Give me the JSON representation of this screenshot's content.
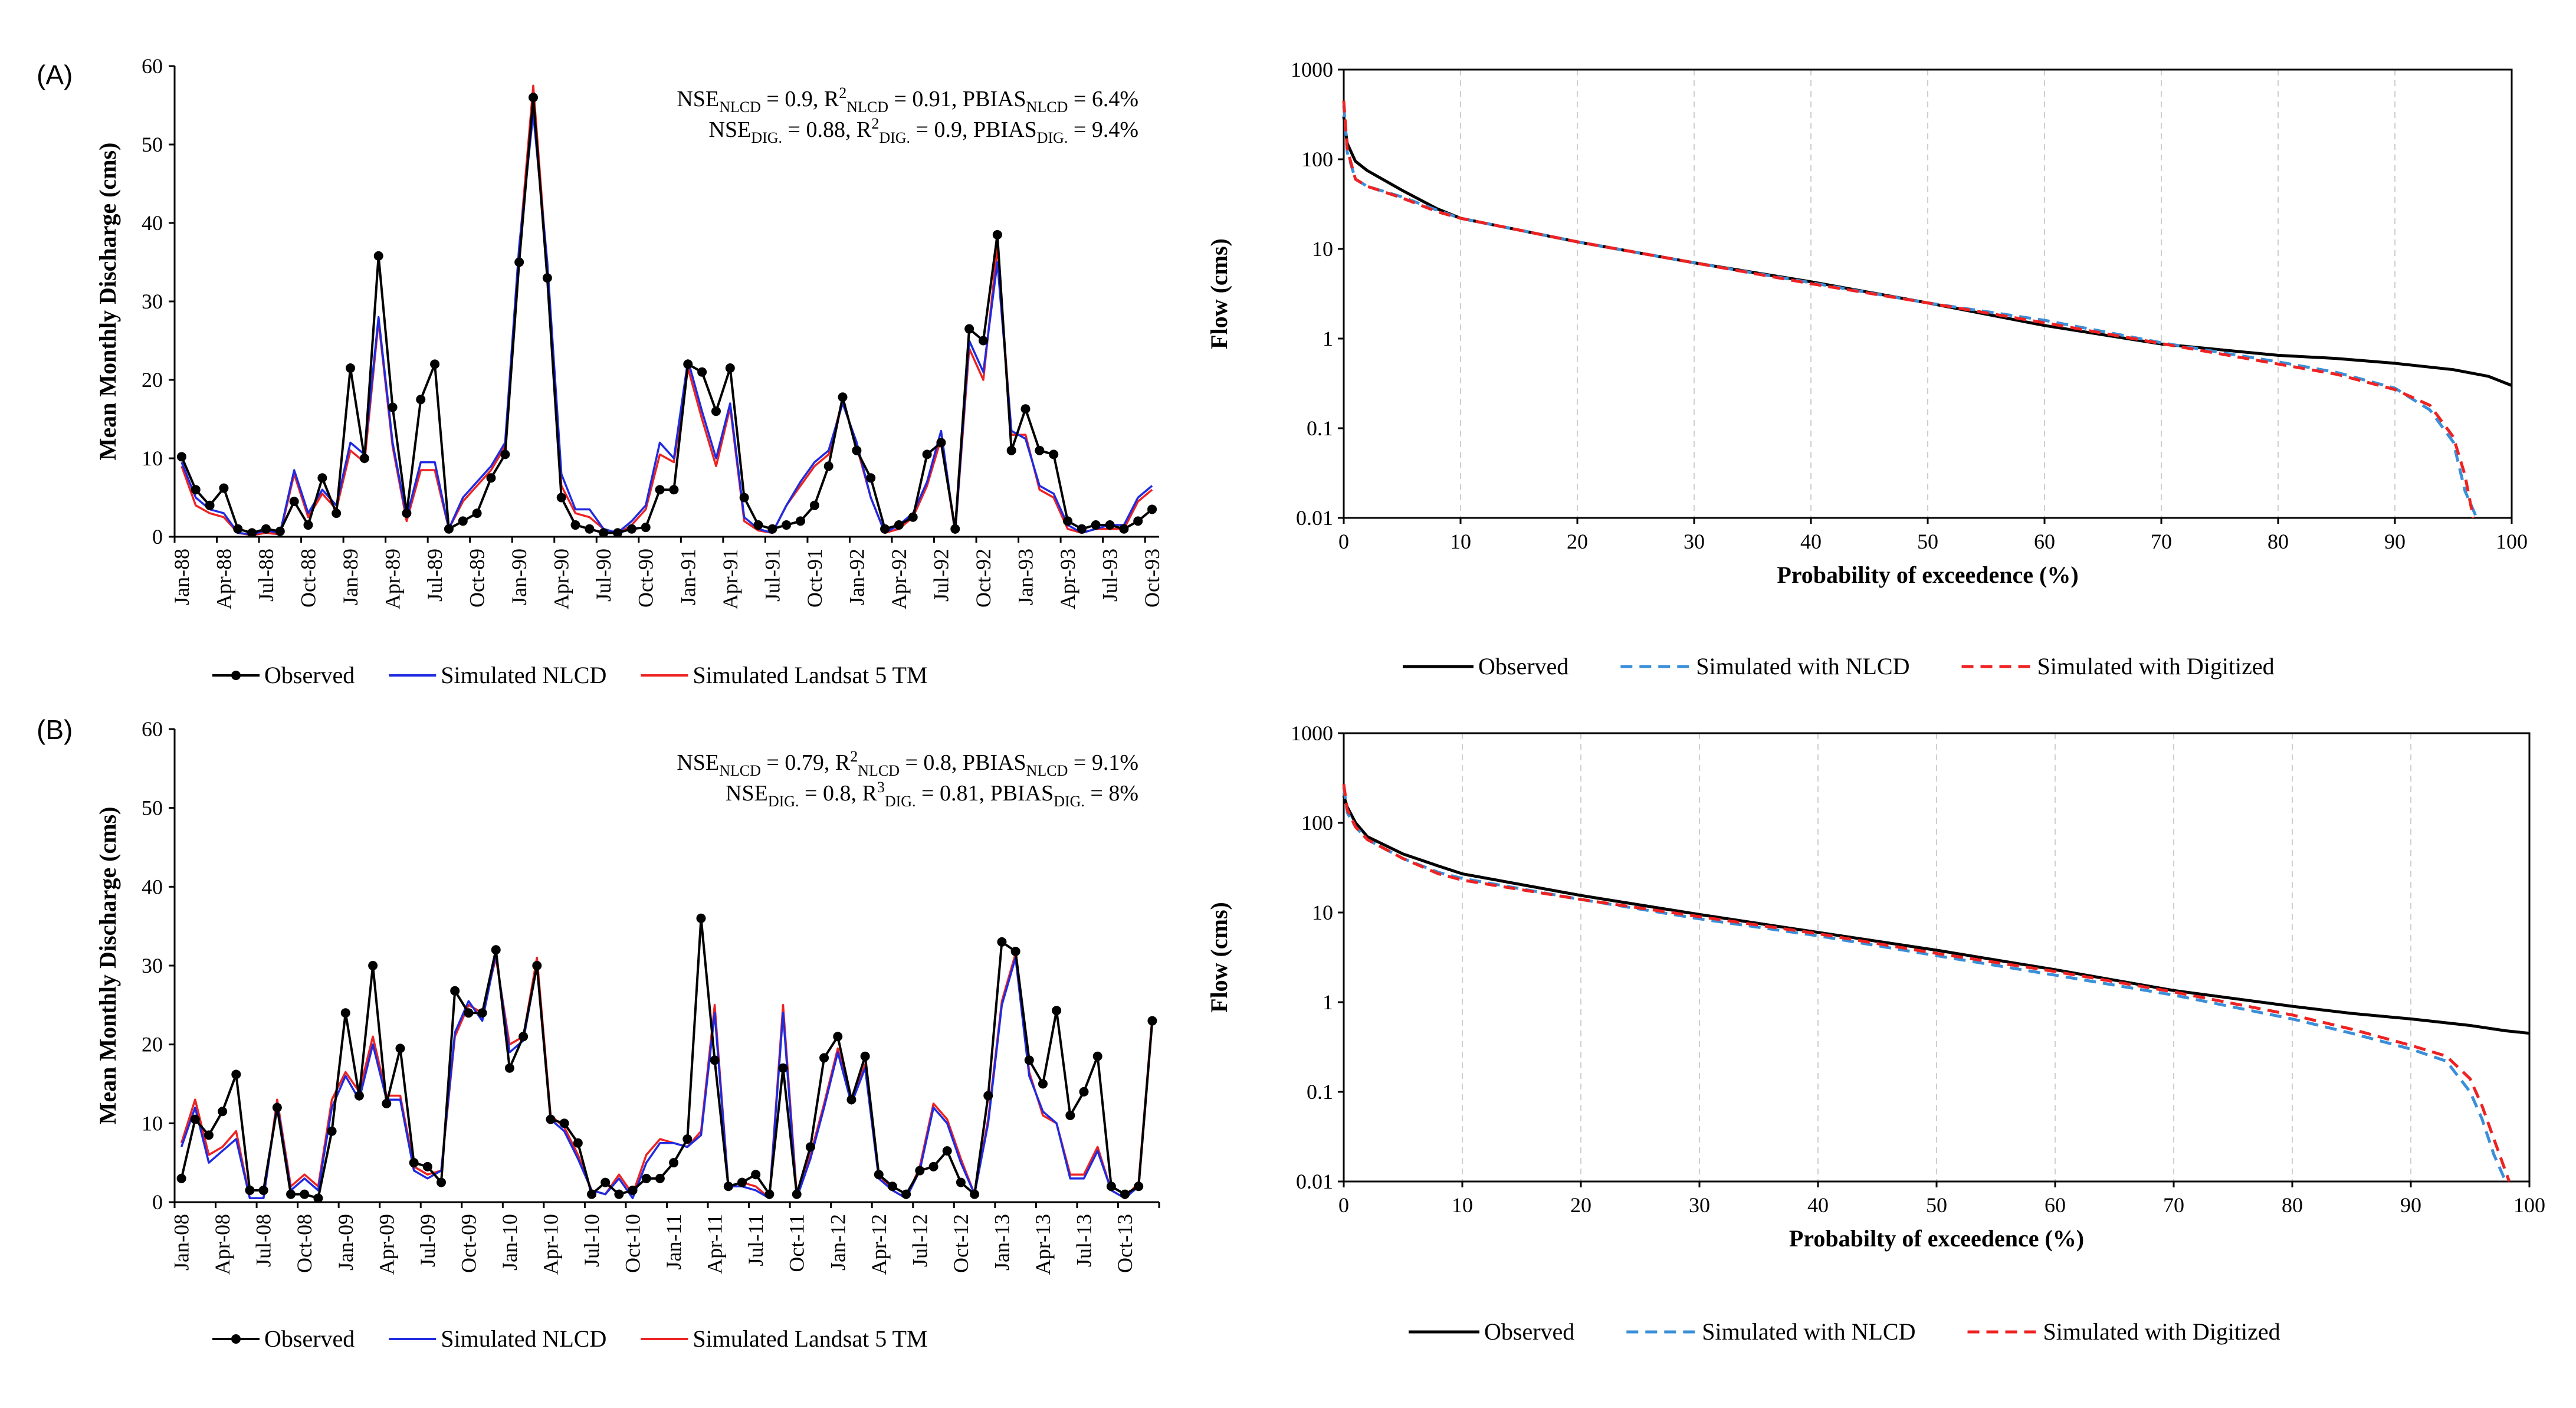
{
  "panels": [
    {
      "label": "(A)"
    },
    {
      "label": "(B)"
    }
  ],
  "chart_data": [
    {
      "id": "ts_A",
      "type": "line",
      "ylabel": "Mean Monthly Discharge (cms)",
      "xlabel": "",
      "ylim": [
        0,
        60
      ],
      "yticks": [
        "0",
        "10",
        "20",
        "30",
        "40",
        "50",
        "60"
      ],
      "tick_labels": [
        "Jan-88",
        "Apr-88",
        "Jul-88",
        "Oct-88",
        "Jan-89",
        "Apr-89",
        "Jul-89",
        "Oct-89",
        "Jan-90",
        "Apr-90",
        "Jul-90",
        "Oct-90",
        "Jan-91",
        "Apr-91",
        "Jul-91",
        "Oct-91",
        "Jan-92",
        "Apr-92",
        "Jul-92",
        "Oct-92",
        "Jan-93",
        "Apr-93",
        "Jul-93",
        "Oct-93"
      ],
      "annotation": {
        "line1": {
          "p1": "NSE",
          "s1": "NLCD",
          "p2": " = 0.9, R",
          "sup2": "2",
          "s2": "NLCD",
          "p3": " = 0.91, PBIAS",
          "s3": "NLCD",
          "p4": " = 6.4%"
        },
        "line2": {
          "p1": "NSE",
          "s1": "DIG.",
          "p2": " = 0.88, R",
          "sup2": "2",
          "s2": "DIG.",
          "p3": " = 0.9, PBIAS",
          "s3": "DIG.",
          "p4": " = 9.4%"
        }
      },
      "legend": [
        "Observed",
        "Simulated NLCD",
        "Simulated Landsat 5 TM"
      ],
      "series": [
        {
          "name": "Observed",
          "color": "#000000",
          "marker": true,
          "values": [
            10.2,
            6,
            4,
            6.2,
            1,
            0.5,
            1,
            0.7,
            4.5,
            1.5,
            7.5,
            3,
            21.5,
            10,
            35.8,
            16.5,
            3,
            17.5,
            22,
            1,
            2,
            3,
            7.5,
            10.5,
            35,
            56,
            33,
            5,
            1.5,
            1,
            0.5,
            0.5,
            1,
            1.2,
            6,
            6,
            22,
            21,
            16,
            21.5,
            5,
            1.5,
            1,
            1.5,
            2,
            4,
            9,
            17.8,
            11,
            7.5,
            1,
            1.5,
            2.5,
            10.5,
            12,
            1,
            26.5,
            25,
            38.5,
            11,
            16.3,
            11,
            10.5,
            2,
            1,
            1.5,
            1.5,
            1,
            2,
            3.5
          ]
        },
        {
          "name": "Simulated NLCD",
          "color": "#1f2be0",
          "marker": false,
          "values": [
            9.5,
            5,
            3.5,
            3,
            0.5,
            0.3,
            0.8,
            0.5,
            8.5,
            3,
            6,
            4,
            12,
            10.5,
            28,
            12,
            2.5,
            9.5,
            9.5,
            1,
            5,
            7,
            9,
            12,
            37,
            54,
            35,
            8,
            3.5,
            3.5,
            1,
            0.5,
            2,
            4,
            12,
            10,
            22.5,
            16,
            10,
            17,
            2.5,
            1,
            0.5,
            4,
            7,
            9.5,
            11,
            17,
            12,
            5,
            0.5,
            1.5,
            3,
            7,
            13.5,
            0.5,
            25,
            21,
            35,
            13.5,
            12.5,
            6.5,
            5.5,
            1.5,
            0.5,
            1,
            1.5,
            1.5,
            5,
            6.5
          ]
        },
        {
          "name": "Simulated Landsat 5 TM",
          "color": "#ee2222",
          "marker": false,
          "values": [
            9,
            4,
            3,
            2.5,
            0.5,
            0.2,
            0.5,
            0.3,
            8,
            2.5,
            5.5,
            3.5,
            11,
            9.5,
            27.5,
            11.5,
            2,
            8.5,
            8.5,
            1,
            4.5,
            6.5,
            8.5,
            11.5,
            36.5,
            57.5,
            34,
            6.5,
            3,
            2.5,
            1,
            0.3,
            1.5,
            3.5,
            10.5,
            9.5,
            21.5,
            15,
            9,
            16.5,
            2,
            0.8,
            0.5,
            4,
            6.5,
            9,
            10.5,
            17.5,
            11.5,
            5,
            0.5,
            1,
            2.5,
            6.5,
            12.5,
            0.5,
            24,
            20,
            37,
            13,
            13,
            6,
            5,
            1,
            0.5,
            1,
            1,
            1,
            4.5,
            6
          ]
        }
      ]
    },
    {
      "id": "fdc_A",
      "type": "line",
      "ylabel": "Flow (cms)",
      "xlabel": "Probability of exceedence (%)",
      "yscale": "log",
      "ylim": [
        0.01,
        1000
      ],
      "xlim": [
        0,
        100
      ],
      "yticks": [
        "0.01",
        "0.1",
        "1",
        "10",
        "100",
        "1000"
      ],
      "xticks": [
        "0",
        "10",
        "20",
        "30",
        "40",
        "50",
        "60",
        "70",
        "80",
        "90",
        "100"
      ],
      "legend": [
        "Observed",
        "Simulated with NLCD",
        "Simulated with Digitized"
      ],
      "series": [
        {
          "name": "Observed",
          "color": "#000000",
          "dash": "solid",
          "x": [
            0,
            0.3,
            1,
            2,
            5,
            8,
            10,
            20,
            30,
            40,
            50,
            60,
            70,
            80,
            85,
            90,
            95,
            98,
            100
          ],
          "y": [
            300,
            150,
            95,
            75,
            45,
            28,
            22,
            12,
            7,
            4.3,
            2.5,
            1.4,
            0.87,
            0.65,
            0.6,
            0.53,
            0.45,
            0.38,
            0.3
          ]
        },
        {
          "name": "Simulated with NLCD",
          "color": "#3a8fd8",
          "dash": "dashed",
          "x": [
            0,
            0.3,
            1,
            2,
            5,
            8,
            10,
            20,
            30,
            40,
            50,
            60,
            70,
            80,
            85,
            90,
            93,
            95,
            96,
            97
          ],
          "y": [
            400,
            120,
            60,
            50,
            38,
            27,
            22,
            12,
            7,
            4.2,
            2.5,
            1.6,
            0.9,
            0.55,
            0.42,
            0.28,
            0.16,
            0.07,
            0.02,
            0.01
          ]
        },
        {
          "name": "Simulated with Digitized",
          "color": "#ee2222",
          "dash": "dashed",
          "x": [
            0,
            0.3,
            1,
            2,
            5,
            8,
            10,
            20,
            30,
            40,
            50,
            60,
            70,
            80,
            85,
            90,
            93,
            95,
            96,
            96.7
          ],
          "y": [
            450,
            130,
            60,
            50,
            37,
            26,
            22,
            12,
            7,
            4.1,
            2.5,
            1.5,
            0.88,
            0.52,
            0.4,
            0.27,
            0.18,
            0.08,
            0.03,
            0.01
          ]
        }
      ]
    },
    {
      "id": "ts_B",
      "type": "line",
      "ylabel": "Mean Monthly Discharge (cms)",
      "xlabel": "",
      "ylim": [
        0,
        60
      ],
      "yticks": [
        "0",
        "10",
        "20",
        "30",
        "40",
        "50",
        "60"
      ],
      "tick_labels": [
        "Jan-08",
        "Apr-08",
        "Jul-08",
        "Oct-08",
        "Jan-09",
        "Apr-09",
        "Jul-09",
        "Oct-09",
        "Jan-10",
        "Apr-10",
        "Jul-10",
        "Oct-10",
        "Jan-11",
        "Apr-11",
        "Jul-11",
        "Oct-11",
        "Jan-12",
        "Apr-12",
        "Jul-12",
        "Oct-12",
        "Jan-13",
        "Apr-13",
        "Jul-13",
        "Oct-13"
      ],
      "annotation": {
        "line1": {
          "p1": "NSE",
          "s1": "NLCD",
          "p2": " = 0.79, R",
          "sup2": "2",
          "s2": "NLCD",
          "p3": " = 0.8, PBIAS",
          "s3": "NLCD",
          "p4": " = 9.1%"
        },
        "line2": {
          "p1": "NSE",
          "s1": "DIG.",
          "p2": " = 0.8, R",
          "sup2": "3",
          "s2": "DIG.",
          "p3": " = 0.81, PBIAS",
          "s3": "DIG.",
          "p4": " = 8%"
        }
      },
      "legend": [
        "Observed",
        "Simulated NLCD",
        "Simulated Landsat 5 TM"
      ],
      "series": [
        {
          "name": "Observed",
          "color": "#000000",
          "marker": true,
          "values": [
            3,
            10.5,
            8.5,
            11.5,
            16.2,
            1.5,
            1.5,
            12,
            1,
            1,
            0.5,
            9,
            24,
            13.5,
            30,
            12.5,
            19.5,
            5,
            4.5,
            2.5,
            26.8,
            24,
            24,
            32,
            17,
            21,
            30,
            10.5,
            10,
            7.5,
            1,
            2.5,
            1,
            1.5,
            3,
            3,
            5,
            8,
            36,
            18,
            2,
            2.5,
            3.5,
            1,
            17,
            1,
            7,
            18.3,
            21,
            13,
            18.5,
            3.5,
            2,
            1,
            4,
            4.5,
            6.5,
            2.5,
            1,
            13.5,
            33,
            31.8,
            18,
            15,
            24.3,
            11,
            14,
            18.5,
            2,
            1,
            2,
            23
          ]
        },
        {
          "name": "Simulated NLCD",
          "color": "#1f2be0",
          "marker": false,
          "values": [
            7,
            12,
            5,
            6.5,
            8,
            0.5,
            0.5,
            12.5,
            1.5,
            3,
            1.5,
            12,
            16,
            13,
            20,
            13,
            13,
            4,
            3,
            4,
            21.5,
            25.5,
            23,
            31.5,
            19,
            20.5,
            30,
            10.5,
            9,
            5.5,
            1.5,
            1,
            3,
            0.5,
            5,
            7.5,
            7.5,
            7,
            8.5,
            24,
            2,
            2,
            1.5,
            0.5,
            24,
            0.5,
            5.5,
            12,
            19,
            12.5,
            17,
            3,
            1.5,
            0.5,
            4,
            12,
            10,
            5,
            1,
            10,
            25,
            31,
            16,
            11.5,
            10,
            3,
            3,
            6.5,
            1.5,
            0.5,
            2,
            23
          ]
        },
        {
          "name": "Simulated Landsat 5 TM",
          "color": "#ee2222",
          "marker": false,
          "values": [
            7.5,
            13,
            6,
            7,
            9,
            0.5,
            0.5,
            13,
            2,
            3.5,
            2,
            13,
            16.5,
            14,
            21,
            13.5,
            13.5,
            4.5,
            3.5,
            4,
            21,
            25,
            24,
            31,
            20,
            21,
            31,
            11,
            9.5,
            6,
            1.5,
            1,
            3.5,
            1,
            6,
            8,
            7.5,
            7,
            9,
            25,
            2,
            2.5,
            2,
            0.5,
            25,
            1,
            6,
            12.5,
            19.5,
            12.5,
            17.5,
            3.5,
            1.5,
            0.5,
            4.5,
            12.5,
            10.5,
            5.5,
            1,
            10.5,
            25.5,
            31.5,
            16.5,
            11,
            10,
            3.5,
            3.5,
            7,
            1.5,
            0.5,
            2.5,
            23.5
          ]
        }
      ]
    },
    {
      "id": "fdc_B",
      "type": "line",
      "ylabel": "Flow (cms)",
      "xlabel": "Probabilty of exceedence (%)",
      "yscale": "log",
      "ylim": [
        0.01,
        1000
      ],
      "xlim": [
        0,
        100
      ],
      "yticks": [
        "0.01",
        "0.1",
        "1",
        "10",
        "100",
        "1000"
      ],
      "xticks": [
        "0",
        "10",
        "20",
        "30",
        "40",
        "50",
        "60",
        "70",
        "80",
        "90",
        "100"
      ],
      "legend": [
        "Observed",
        "Simulated with NLCD",
        "Simulated with Digitized"
      ],
      "series": [
        {
          "name": "Observed",
          "color": "#000000",
          "dash": "solid",
          "x": [
            0,
            0.3,
            1,
            2,
            5,
            8,
            10,
            20,
            30,
            40,
            50,
            60,
            70,
            80,
            85,
            90,
            95,
            98,
            100
          ],
          "y": [
            200,
            150,
            100,
            70,
            45,
            33,
            27,
            15.5,
            9.5,
            6,
            3.8,
            2.3,
            1.35,
            0.9,
            0.75,
            0.65,
            0.55,
            0.48,
            0.45
          ]
        },
        {
          "name": "Simulated with NLCD",
          "color": "#3a8fd8",
          "dash": "dashed",
          "x": [
            0,
            0.3,
            1,
            2,
            5,
            8,
            10,
            20,
            30,
            40,
            50,
            60,
            70,
            80,
            85,
            90,
            93,
            95,
            96,
            97,
            98
          ],
          "y": [
            250,
            130,
            90,
            65,
            40,
            28,
            24,
            14,
            8.5,
            5.5,
            3.3,
            2,
            1.2,
            0.65,
            0.45,
            0.3,
            0.22,
            0.1,
            0.05,
            0.02,
            0.01
          ]
        },
        {
          "name": "Simulated with Digitized",
          "color": "#ee2222",
          "dash": "dashed",
          "x": [
            0,
            0.3,
            1,
            2,
            5,
            8,
            10,
            20,
            30,
            40,
            50,
            60,
            70,
            80,
            85,
            90,
            93,
            95,
            96,
            97,
            98.3
          ],
          "y": [
            270,
            140,
            90,
            65,
            40,
            27,
            23,
            14,
            9,
            5.8,
            3.5,
            2.2,
            1.3,
            0.72,
            0.5,
            0.33,
            0.25,
            0.14,
            0.07,
            0.03,
            0.01
          ]
        }
      ]
    }
  ]
}
